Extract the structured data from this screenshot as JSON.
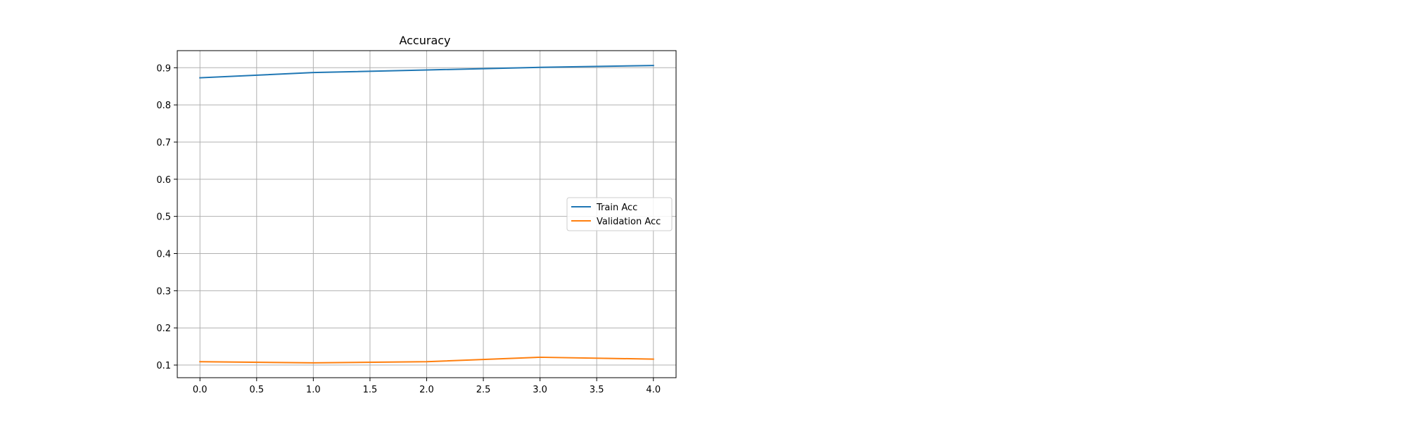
{
  "chart_data": {
    "type": "line",
    "title": "Accuracy",
    "xlabel": "",
    "ylabel": "",
    "x": [
      0,
      1,
      2,
      3,
      4
    ],
    "series": [
      {
        "name": "Train Acc",
        "color": "#1f77b4",
        "values": [
          0.873,
          0.887,
          0.894,
          0.901,
          0.906
        ]
      },
      {
        "name": "Validation Acc",
        "color": "#ff7f0e",
        "values": [
          0.109,
          0.106,
          0.109,
          0.121,
          0.116
        ]
      }
    ],
    "xlim": [
      -0.2,
      4.2
    ],
    "ylim": [
      0.066,
      0.946
    ],
    "xticks": [
      0.0,
      0.5,
      1.0,
      1.5,
      2.0,
      2.5,
      3.0,
      3.5,
      4.0
    ],
    "xtick_labels": [
      "0.0",
      "0.5",
      "1.0",
      "1.5",
      "2.0",
      "2.5",
      "3.0",
      "3.5",
      "4.0"
    ],
    "yticks": [
      0.1,
      0.2,
      0.3,
      0.4,
      0.5,
      0.6,
      0.7,
      0.8,
      0.9
    ],
    "ytick_labels": [
      "0.1",
      "0.2",
      "0.3",
      "0.4",
      "0.5",
      "0.6",
      "0.7",
      "0.8",
      "0.9"
    ],
    "grid": true,
    "legend_position": "center-right"
  }
}
